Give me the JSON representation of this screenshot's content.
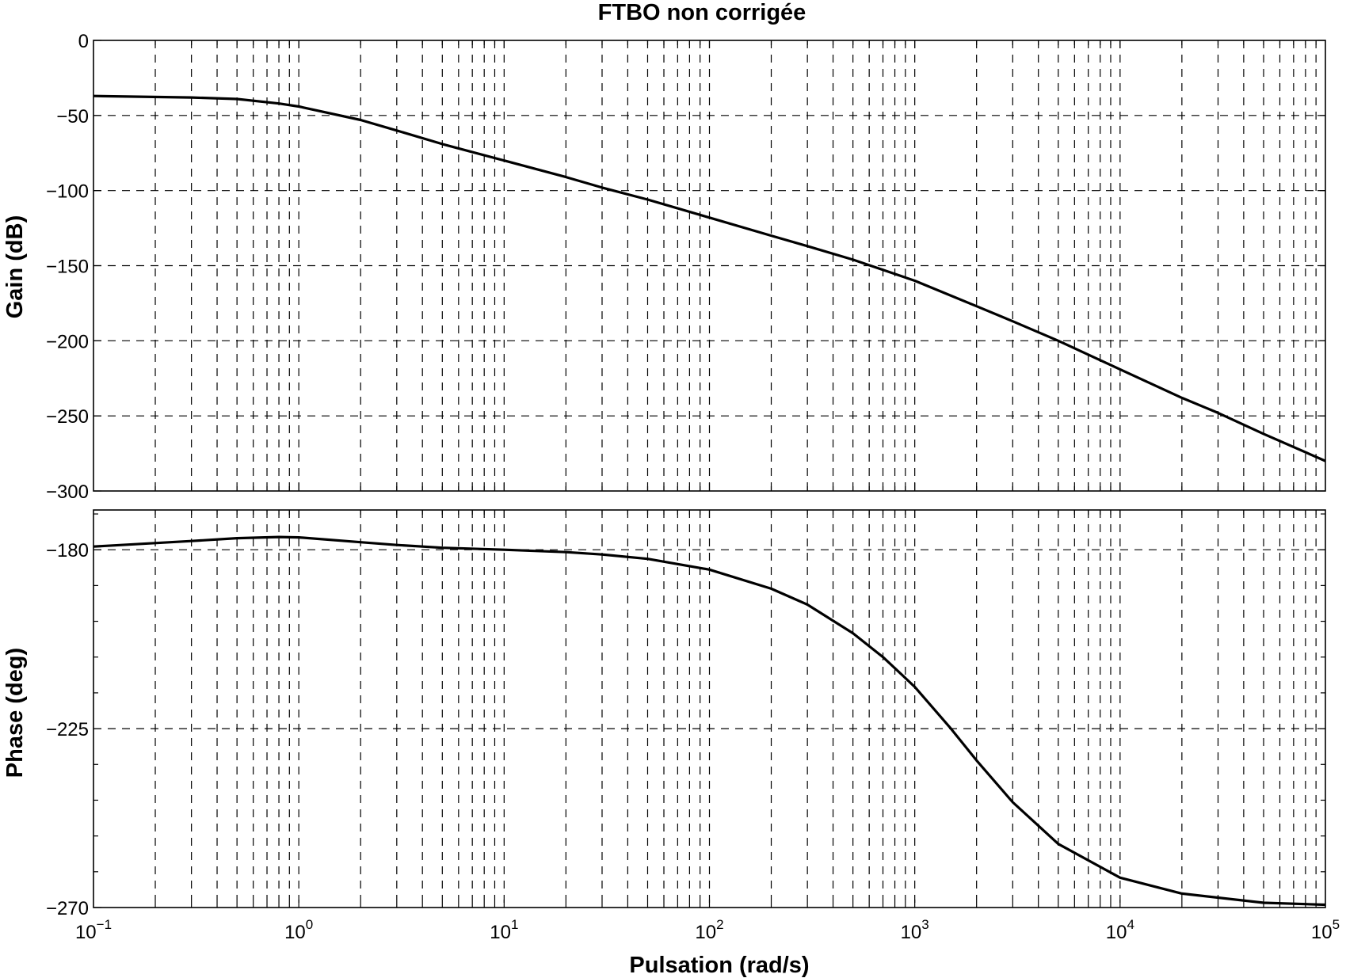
{
  "figure": {
    "title": "FTBO non corrigée",
    "xlabel": "Pulsation (rad/s)"
  },
  "chart_data": [
    {
      "type": "line",
      "name": "magnitude",
      "ylabel": "Gain (dB)",
      "xscale": "log",
      "xlim": [
        0.1,
        100000
      ],
      "ylim": [
        -300,
        0
      ],
      "yticks": [
        0,
        -50,
        -100,
        -150,
        -200,
        -250,
        -300
      ],
      "ytick_labels": [
        "0",
        "−50",
        "−100",
        "−150",
        "−200",
        "−250",
        "−300"
      ],
      "grid": true,
      "x": [
        0.1,
        0.3,
        0.5,
        0.8,
        1,
        2,
        3,
        5,
        10,
        20,
        30,
        50,
        100,
        200,
        300,
        500,
        1000,
        2000,
        3000,
        5000,
        10000,
        20000,
        30000,
        50000,
        100000
      ],
      "values": [
        -37,
        -38,
        -39,
        -42,
        -44,
        -53,
        -60,
        -69,
        -80,
        -91,
        -98,
        -106,
        -118,
        -130,
        -137,
        -146,
        -160,
        -177,
        -187,
        -200,
        -219,
        -238,
        -248,
        -262,
        -280
      ]
    },
    {
      "type": "line",
      "name": "phase",
      "ylabel": "Phase (deg)",
      "xscale": "log",
      "xlim": [
        0.1,
        100000
      ],
      "ylim": [
        -270,
        -170
      ],
      "yticks": [
        -180,
        -225,
        -270
      ],
      "ytick_labels": [
        "−180",
        "−225",
        "−270"
      ],
      "grid": true,
      "x": [
        0.1,
        0.3,
        0.5,
        0.8,
        1,
        2,
        3,
        5,
        10,
        20,
        30,
        50,
        100,
        200,
        300,
        500,
        700,
        1000,
        1500,
        2000,
        3000,
        5000,
        10000,
        20000,
        50000,
        100000
      ],
      "values": [
        -179.2,
        -177.8,
        -177.1,
        -176.8,
        -176.9,
        -178.1,
        -178.8,
        -179.5,
        -180.0,
        -180.6,
        -181.2,
        -182.3,
        -185.0,
        -189.8,
        -193.8,
        -201.0,
        -207.0,
        -214.5,
        -225.0,
        -233.0,
        -243.5,
        -254.0,
        -262.5,
        -266.5,
        -268.8,
        -269.3
      ]
    }
  ],
  "x_axis": {
    "ticks": [
      {
        "base": "10",
        "exp": "−1"
      },
      {
        "base": "10",
        "exp": "0"
      },
      {
        "base": "10",
        "exp": "1"
      },
      {
        "base": "10",
        "exp": "2"
      },
      {
        "base": "10",
        "exp": "3"
      },
      {
        "base": "10",
        "exp": "4"
      },
      {
        "base": "10",
        "exp": "5"
      }
    ]
  }
}
